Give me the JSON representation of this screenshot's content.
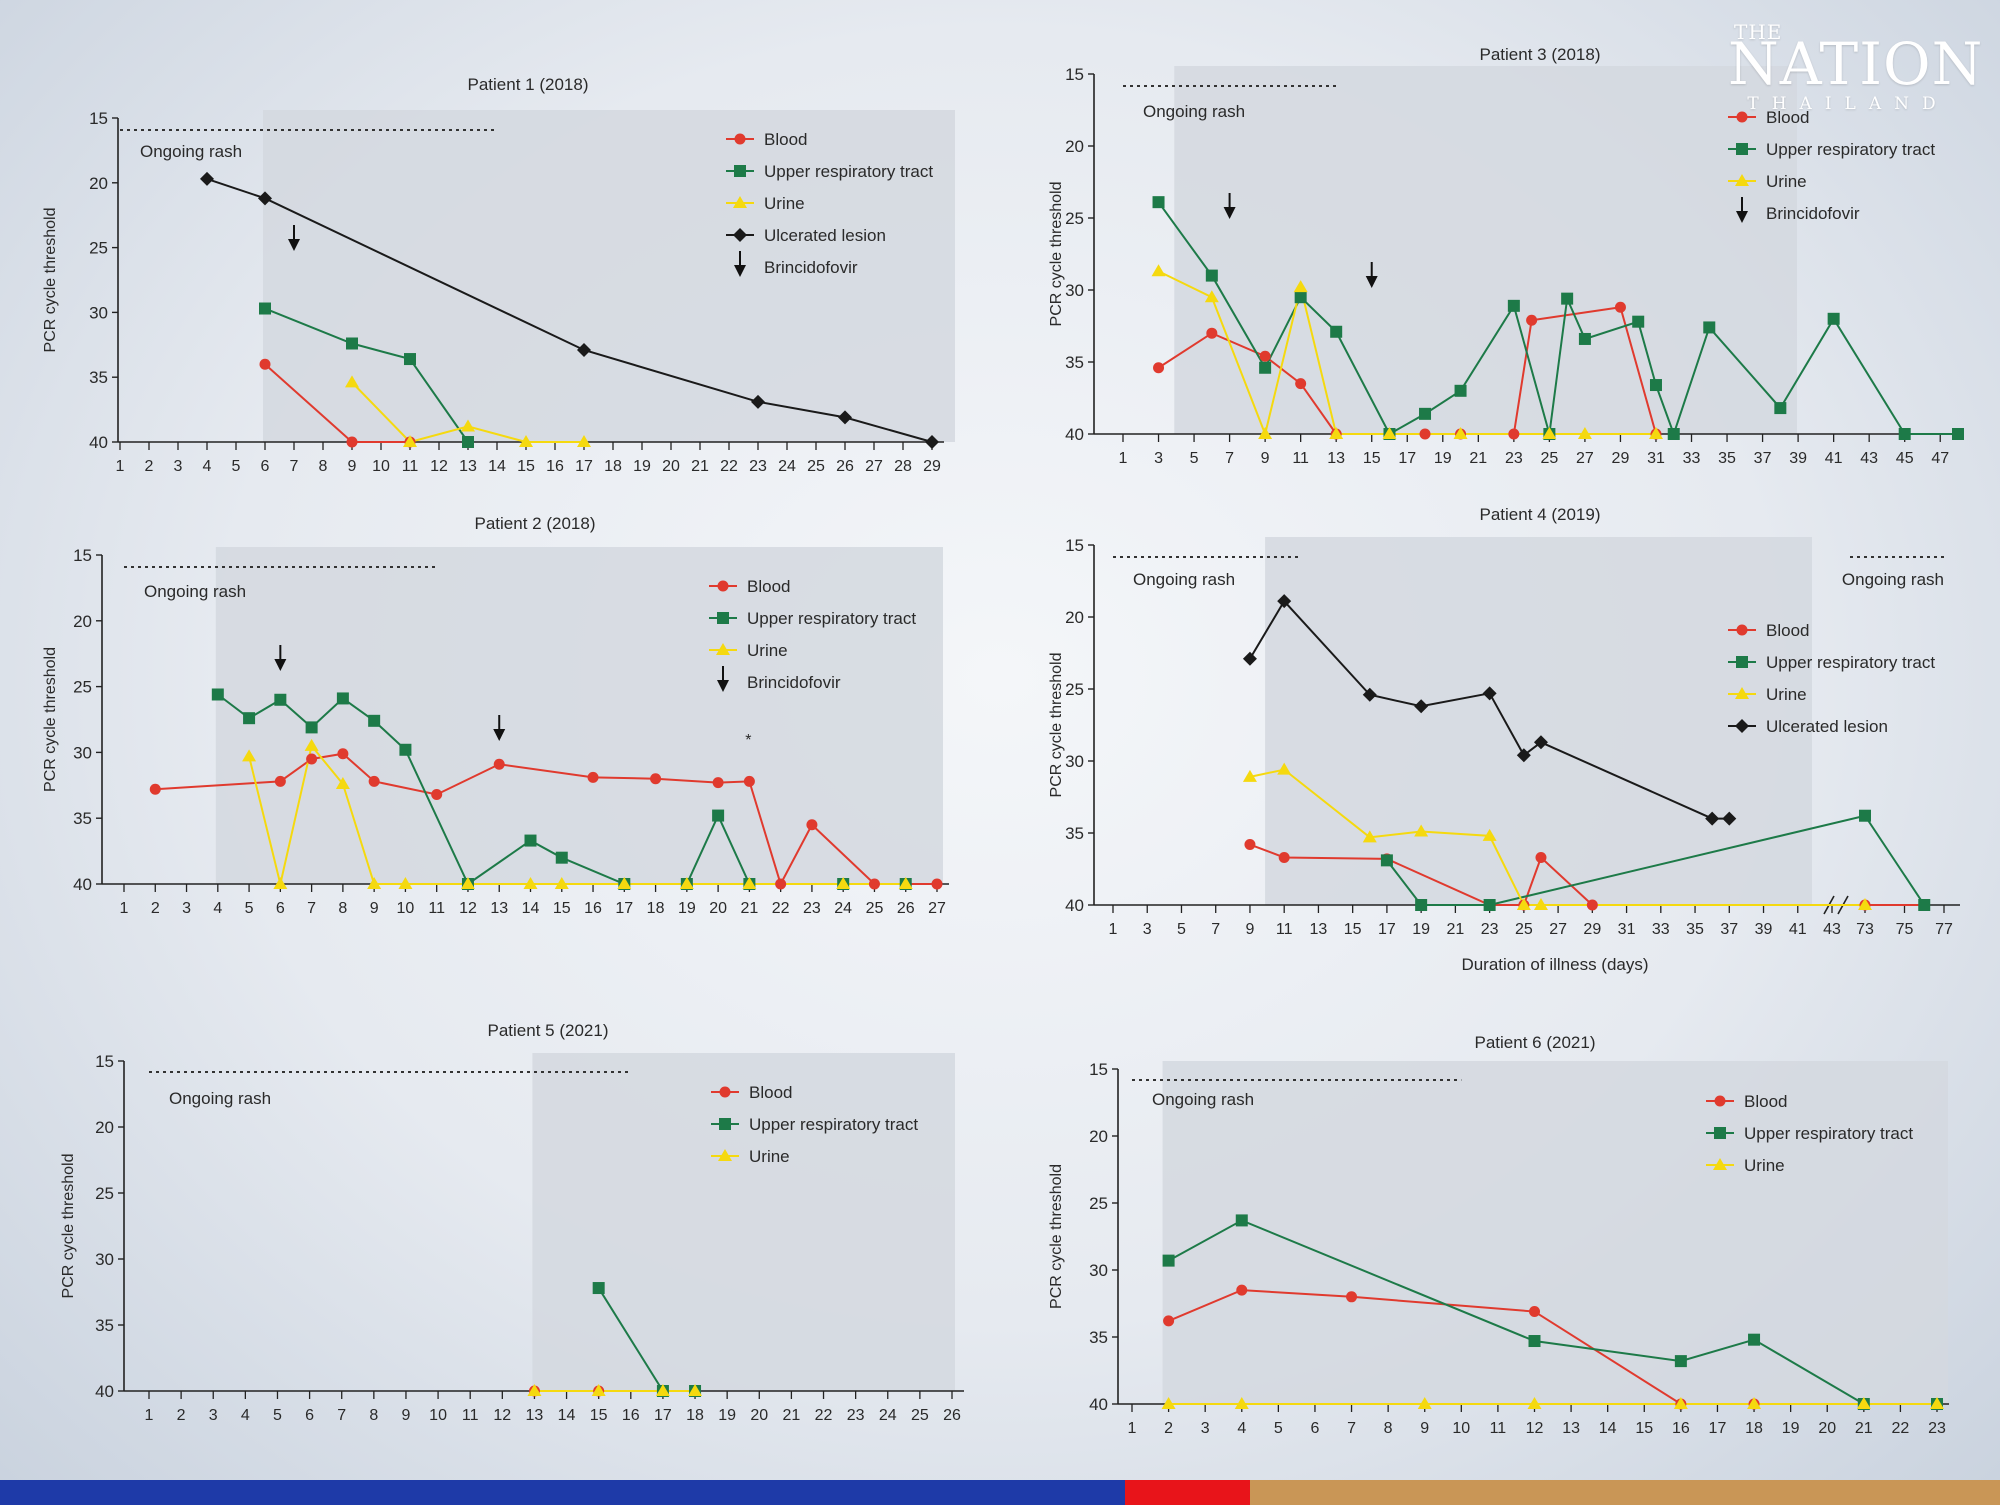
{
  "branding": {
    "logo_top": "THE",
    "logo_name": "NATION",
    "logo_country": "THAILAND",
    "footer_colors": [
      "#1e3aa8",
      "#e8141a",
      "#c99656"
    ]
  },
  "colors": {
    "blood": "#e03a2e",
    "upper_respiratory": "#1d7a48",
    "urine": "#f5d90f",
    "ulcerated": "#1a1a1a",
    "shade": "#d4d8df"
  },
  "chart_data": [
    {
      "type": "line",
      "title": "Patient 1 (2018)",
      "xlabel": "",
      "ylabel": "PCR cycle threshold",
      "ylim": [
        15,
        40
      ],
      "yticks": [
        15,
        20,
        25,
        30,
        35,
        40
      ],
      "xticks": [
        "1",
        "2",
        "3",
        "4",
        "5",
        "6",
        "7",
        "8",
        "9",
        "10",
        "11",
        "12",
        "13",
        "14",
        "15",
        "16",
        "17",
        "18",
        "19",
        "20",
        "21",
        "22",
        "23",
        "24",
        "25",
        "26",
        "27",
        "28",
        "29"
      ],
      "shade_from": 6,
      "rash_label": "Ongoing rash",
      "rash_from": 1,
      "rash_to": 14,
      "brincidofovir_days": [
        7
      ],
      "series": [
        {
          "name": "Blood",
          "points": [
            [
              6,
              34
            ],
            [
              9,
              40
            ],
            [
              11,
              40
            ]
          ]
        },
        {
          "name": "Upper respiratory tract",
          "points": [
            [
              6,
              29.7
            ],
            [
              9,
              32.4
            ],
            [
              11,
              33.6
            ],
            [
              13,
              40
            ]
          ]
        },
        {
          "name": "Urine",
          "points": [
            [
              9,
              35.4
            ],
            [
              11,
              40
            ],
            [
              13,
              38.8
            ],
            [
              15,
              40
            ],
            [
              17,
              40
            ]
          ]
        },
        {
          "name": "Ulcerated lesion",
          "points": [
            [
              4,
              19.7
            ],
            [
              6,
              21.2
            ],
            [
              17,
              32.9
            ],
            [
              23,
              36.9
            ],
            [
              26,
              38.1
            ],
            [
              29,
              40
            ]
          ]
        }
      ],
      "legend": [
        "Blood",
        "Upper respiratory tract",
        "Urine",
        "Ulcerated lesion",
        "Brincidofovir"
      ]
    },
    {
      "type": "line",
      "title": "Patient 2 (2018)",
      "xlabel": "",
      "ylabel": "PCR cycle threshold",
      "ylim": [
        15,
        40
      ],
      "yticks": [
        15,
        20,
        25,
        30,
        35,
        40
      ],
      "xticks": [
        "1",
        "2",
        "3",
        "4",
        "5",
        "6",
        "7",
        "8",
        "9",
        "10",
        "11",
        "12",
        "13",
        "14",
        "15",
        "16",
        "17",
        "18",
        "19",
        "20",
        "21",
        "22",
        "23",
        "24",
        "25",
        "26",
        "27"
      ],
      "shade_from": 4,
      "rash_label": "Ongoing rash",
      "rash_from": 1,
      "rash_to": 11,
      "brincidofovir_days": [
        6,
        13
      ],
      "annotation": "*",
      "annotation_day": 21,
      "series": [
        {
          "name": "Blood",
          "points": [
            [
              2,
              32.8
            ],
            [
              6,
              32.2
            ],
            [
              7,
              30.5
            ],
            [
              8,
              30.1
            ],
            [
              9,
              32.2
            ],
            [
              11,
              33.2
            ],
            [
              13,
              30.9
            ],
            [
              16,
              31.9
            ],
            [
              18,
              32.0
            ],
            [
              20,
              32.3
            ],
            [
              21,
              32.2
            ],
            [
              22,
              40
            ],
            [
              23,
              35.5
            ],
            [
              25,
              40
            ],
            [
              26,
              40
            ],
            [
              27,
              40
            ]
          ]
        },
        {
          "name": "Upper respiratory tract",
          "points": [
            [
              4,
              25.6
            ],
            [
              5,
              27.4
            ],
            [
              6,
              26
            ],
            [
              7,
              28.1
            ],
            [
              8,
              25.9
            ],
            [
              9,
              27.6
            ],
            [
              10,
              29.8
            ],
            [
              12,
              40
            ],
            [
              14,
              36.7
            ],
            [
              15,
              38
            ],
            [
              17,
              40
            ],
            [
              19,
              40
            ],
            [
              20,
              34.8
            ],
            [
              21,
              40
            ],
            [
              24,
              40
            ],
            [
              26,
              40
            ]
          ]
        },
        {
          "name": "Urine",
          "points": [
            [
              5,
              30.3
            ],
            [
              6,
              40
            ],
            [
              7,
              29.5
            ],
            [
              8,
              32.4
            ],
            [
              9,
              40
            ],
            [
              10,
              40
            ],
            [
              12,
              40
            ],
            [
              14,
              40
            ],
            [
              15,
              40
            ],
            [
              17,
              40
            ],
            [
              19,
              40
            ],
            [
              21,
              40
            ],
            [
              24,
              40
            ],
            [
              26,
              40
            ]
          ]
        }
      ],
      "legend": [
        "Blood",
        "Upper respiratory tract",
        "Urine",
        "Brincidofovir"
      ]
    },
    {
      "type": "line",
      "title": "Patient 5 (2021)",
      "xlabel": "",
      "ylabel": "PCR cycle threshold",
      "ylim": [
        15,
        40
      ],
      "yticks": [
        15,
        20,
        25,
        30,
        35,
        40
      ],
      "xticks": [
        "1",
        "2",
        "3",
        "4",
        "5",
        "6",
        "7",
        "8",
        "9",
        "10",
        "11",
        "12",
        "13",
        "14",
        "15",
        "16",
        "17",
        "18",
        "19",
        "20",
        "21",
        "22",
        "23",
        "24",
        "25",
        "26"
      ],
      "shade_from": 13,
      "rash_label": "Ongoing rash",
      "rash_from": 1,
      "rash_to": 16,
      "brincidofovir_days": [],
      "series": [
        {
          "name": "Blood",
          "points": [
            [
              13,
              40
            ],
            [
              15,
              40
            ],
            [
              17,
              40
            ],
            [
              18,
              40
            ]
          ]
        },
        {
          "name": "Upper respiratory tract",
          "points": [
            [
              15,
              32.2
            ],
            [
              17,
              40
            ],
            [
              18,
              40
            ]
          ]
        },
        {
          "name": "Urine",
          "points": [
            [
              13,
              40
            ],
            [
              15,
              40
            ],
            [
              17,
              40
            ],
            [
              18,
              40
            ]
          ]
        }
      ],
      "legend": [
        "Blood",
        "Upper respiratory tract",
        "Urine"
      ]
    },
    {
      "type": "line",
      "title": "Patient 3 (2018)",
      "xlabel": "",
      "ylabel": "PCR cycle threshold",
      "ylim": [
        15,
        40
      ],
      "yticks": [
        15,
        20,
        25,
        30,
        35,
        40
      ],
      "xticks": [
        "1",
        "3",
        "5",
        "7",
        "9",
        "11",
        "13",
        "15",
        "17",
        "19",
        "21",
        "23",
        "25",
        "27",
        "29",
        "31",
        "33",
        "35",
        "37",
        "39",
        "41",
        "43",
        "45",
        "47"
      ],
      "x_numeric": [
        1,
        48
      ],
      "shade_from": 4,
      "shade_to": 39,
      "rash_label": "Ongoing rash",
      "rash_from": 1,
      "rash_to": 13,
      "brincidofovir_days": [
        7,
        15
      ],
      "series": [
        {
          "name": "Blood",
          "points": [
            [
              3,
              35.4
            ],
            [
              6,
              33
            ],
            [
              9,
              34.6
            ],
            [
              11,
              36.5
            ],
            [
              13,
              40
            ],
            [
              16,
              40
            ],
            [
              18,
              40
            ],
            [
              20,
              40
            ],
            [
              23,
              40
            ],
            [
              24,
              32.1
            ],
            [
              29,
              31.2
            ],
            [
              31,
              40
            ]
          ]
        },
        {
          "name": "Upper respiratory tract",
          "points": [
            [
              3,
              23.9
            ],
            [
              6,
              29
            ],
            [
              9,
              35.4
            ],
            [
              11,
              30.5
            ],
            [
              13,
              32.9
            ],
            [
              16,
              40
            ],
            [
              18,
              38.6
            ],
            [
              20,
              37
            ],
            [
              23,
              31.1
            ],
            [
              25,
              40
            ],
            [
              26,
              30.6
            ],
            [
              27,
              33.4
            ],
            [
              30,
              32.2
            ],
            [
              31,
              36.6
            ],
            [
              32,
              40
            ],
            [
              34,
              32.6
            ],
            [
              38,
              38.2
            ],
            [
              41,
              32
            ],
            [
              45,
              40
            ],
            [
              48,
              40
            ]
          ]
        },
        {
          "name": "Urine",
          "points": [
            [
              3,
              28.7
            ],
            [
              6,
              30.5
            ],
            [
              9,
              40
            ],
            [
              11,
              29.8
            ],
            [
              13,
              40
            ],
            [
              16,
              40
            ],
            [
              20,
              40
            ],
            [
              25,
              40
            ],
            [
              27,
              40
            ],
            [
              31,
              40
            ]
          ]
        }
      ],
      "legend": [
        "Blood",
        "Upper respiratory tract",
        "Urine",
        "Brincidofovir"
      ]
    },
    {
      "type": "line",
      "title": "Patient 4 (2019)",
      "xlabel": "Duration of illness (days)",
      "ylabel": "PCR cycle threshold",
      "ylim": [
        15,
        40
      ],
      "yticks": [
        15,
        20,
        25,
        30,
        35,
        40
      ],
      "xticks": [
        "1",
        "3",
        "5",
        "7",
        "9",
        "11",
        "13",
        "15",
        "17",
        "19",
        "21",
        "23",
        "25",
        "27",
        "29",
        "31",
        "33",
        "35",
        "37",
        "39",
        "41",
        "43",
        "73",
        "75",
        "77"
      ],
      "axis_break": "43 / 73",
      "shade_from": 10,
      "shade_to": 43,
      "rash_label": "Ongoing rash",
      "rash_from": 1,
      "rash_to": 12,
      "rash2_label": "Ongoing rash",
      "rash2_from": 72,
      "rash2_to": 77,
      "brincidofovir_days": [],
      "series": [
        {
          "name": "Blood",
          "points": [
            [
              9,
              35.8
            ],
            [
              11,
              36.7
            ],
            [
              17,
              36.8
            ],
            [
              23,
              40
            ],
            [
              25,
              40
            ],
            [
              26,
              36.7
            ],
            [
              29,
              40
            ],
            [
              73,
              40
            ],
            [
              76,
              40
            ]
          ]
        },
        {
          "name": "Upper respiratory tract",
          "points": [
            [
              17,
              36.9
            ],
            [
              19,
              40
            ],
            [
              23,
              40
            ],
            [
              73,
              33.8
            ],
            [
              76,
              40
            ]
          ]
        },
        {
          "name": "Urine",
          "points": [
            [
              9,
              31.1
            ],
            [
              11,
              30.6
            ],
            [
              16,
              35.3
            ],
            [
              19,
              34.9
            ],
            [
              23,
              35.2
            ],
            [
              25,
              40
            ],
            [
              26,
              40
            ],
            [
              73,
              40
            ]
          ]
        },
        {
          "name": "Ulcerated lesion",
          "points": [
            [
              9,
              22.9
            ],
            [
              11,
              18.9
            ],
            [
              16,
              25.4
            ],
            [
              19,
              26.2
            ],
            [
              23,
              25.3
            ],
            [
              25,
              29.6
            ],
            [
              26,
              28.7
            ],
            [
              36,
              34
            ],
            [
              37,
              34
            ]
          ]
        }
      ],
      "legend": [
        "Blood",
        "Upper respiratory tract",
        "Urine",
        "Ulcerated lesion"
      ]
    },
    {
      "type": "line",
      "title": "Patient 6 (2021)",
      "xlabel": "",
      "ylabel": "PCR cycle threshold",
      "ylim": [
        15,
        40
      ],
      "yticks": [
        15,
        20,
        25,
        30,
        35,
        40
      ],
      "xticks": [
        "1",
        "2",
        "3",
        "4",
        "5",
        "6",
        "7",
        "8",
        "9",
        "10",
        "11",
        "12",
        "13",
        "14",
        "15",
        "16",
        "17",
        "18",
        "19",
        "20",
        "21",
        "22",
        "23"
      ],
      "shade_from": 2,
      "rash_label": "Ongoing rash",
      "rash_from": 1,
      "rash_to": 10,
      "brincidofovir_days": [],
      "series": [
        {
          "name": "Blood",
          "points": [
            [
              2,
              33.8
            ],
            [
              4,
              31.5
            ],
            [
              7,
              32
            ],
            [
              12,
              33.1
            ],
            [
              16,
              40
            ],
            [
              18,
              40
            ],
            [
              21,
              40
            ],
            [
              23,
              40
            ]
          ]
        },
        {
          "name": "Upper respiratory tract",
          "points": [
            [
              2,
              29.3
            ],
            [
              4,
              26.3
            ],
            [
              12,
              35.3
            ],
            [
              16,
              36.8
            ],
            [
              18,
              35.2
            ],
            [
              21,
              40
            ],
            [
              23,
              40
            ]
          ]
        },
        {
          "name": "Urine",
          "points": [
            [
              2,
              40
            ],
            [
              4,
              40
            ],
            [
              9,
              40
            ],
            [
              12,
              40
            ],
            [
              16,
              40
            ],
            [
              18,
              40
            ],
            [
              21,
              40
            ],
            [
              23,
              40
            ]
          ]
        }
      ],
      "legend": [
        "Blood",
        "Upper respiratory tract",
        "Urine"
      ]
    }
  ]
}
